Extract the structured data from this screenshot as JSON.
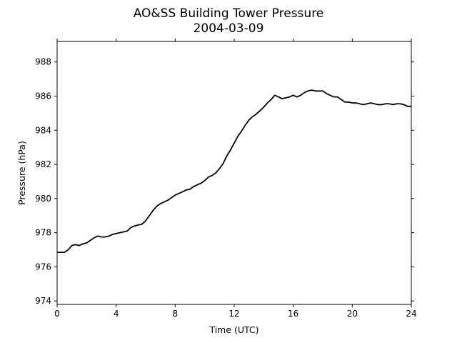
{
  "chart_data": {
    "type": "line",
    "title": "AO&SS Building Tower Pressure",
    "subtitle": "2004-03-09",
    "xlabel": "Time (UTC)",
    "ylabel": "Pressure (hPa)",
    "xlim": [
      0,
      24
    ],
    "ylim": [
      973.8,
      989.2
    ],
    "xticks": [
      0,
      4,
      8,
      12,
      16,
      20,
      24
    ],
    "yticks": [
      974,
      976,
      978,
      980,
      982,
      984,
      986,
      988
    ],
    "grid": false,
    "line_color": "#000000",
    "series": [
      {
        "x": [
          0,
          0.25,
          0.5,
          0.75,
          1.0,
          1.25,
          1.5,
          1.75,
          2.0,
          2.25,
          2.5,
          2.75,
          3.0,
          3.25,
          3.5,
          3.75,
          4.0,
          4.25,
          4.5,
          4.75,
          5.0,
          5.25,
          5.5,
          5.75,
          6.0,
          6.25,
          6.5,
          6.75,
          7.0,
          7.25,
          7.5,
          7.75,
          8.0,
          8.25,
          8.5,
          8.75,
          9.0,
          9.25,
          9.5,
          9.75,
          10.0,
          10.25,
          10.5,
          10.75,
          11.0,
          11.25,
          11.5,
          11.75,
          12.0,
          12.25,
          12.5,
          12.75,
          13.0,
          13.25,
          13.5,
          13.75,
          14.0,
          14.25,
          14.5,
          14.75,
          15.0,
          15.25,
          15.5,
          15.75,
          16.0,
          16.25,
          16.5,
          16.75,
          17.0,
          17.25,
          17.5,
          17.75,
          18.0,
          18.25,
          18.5,
          18.75,
          19.0,
          19.25,
          19.5,
          19.75,
          20.0,
          20.25,
          20.5,
          20.75,
          21.0,
          21.25,
          21.5,
          21.75,
          22.0,
          22.25,
          22.5,
          22.75,
          23.0,
          23.25,
          23.5,
          23.75,
          24.0
        ],
        "y": [
          976.85,
          976.85,
          976.85,
          977.0,
          977.25,
          977.3,
          977.25,
          977.35,
          977.4,
          977.55,
          977.7,
          977.8,
          977.75,
          977.75,
          977.8,
          977.9,
          977.95,
          978.0,
          978.05,
          978.1,
          978.3,
          978.4,
          978.45,
          978.5,
          978.7,
          979.0,
          979.3,
          979.55,
          979.7,
          979.8,
          979.9,
          980.05,
          980.2,
          980.3,
          980.4,
          980.5,
          980.55,
          980.7,
          980.8,
          980.9,
          981.05,
          981.25,
          981.35,
          981.5,
          981.75,
          982.05,
          982.5,
          982.85,
          983.25,
          983.65,
          983.95,
          984.3,
          984.6,
          984.8,
          984.95,
          985.15,
          985.35,
          985.6,
          985.8,
          986.05,
          985.95,
          985.85,
          985.9,
          985.95,
          986.05,
          985.95,
          986.05,
          986.2,
          986.3,
          986.35,
          986.3,
          986.3,
          986.3,
          986.15,
          986.05,
          985.95,
          985.95,
          985.8,
          985.65,
          985.65,
          985.6,
          985.6,
          985.55,
          985.5,
          985.55,
          985.6,
          985.55,
          985.5,
          985.5,
          985.55,
          985.55,
          985.5,
          985.55,
          985.55,
          985.5,
          985.4,
          985.4
        ]
      }
    ]
  }
}
